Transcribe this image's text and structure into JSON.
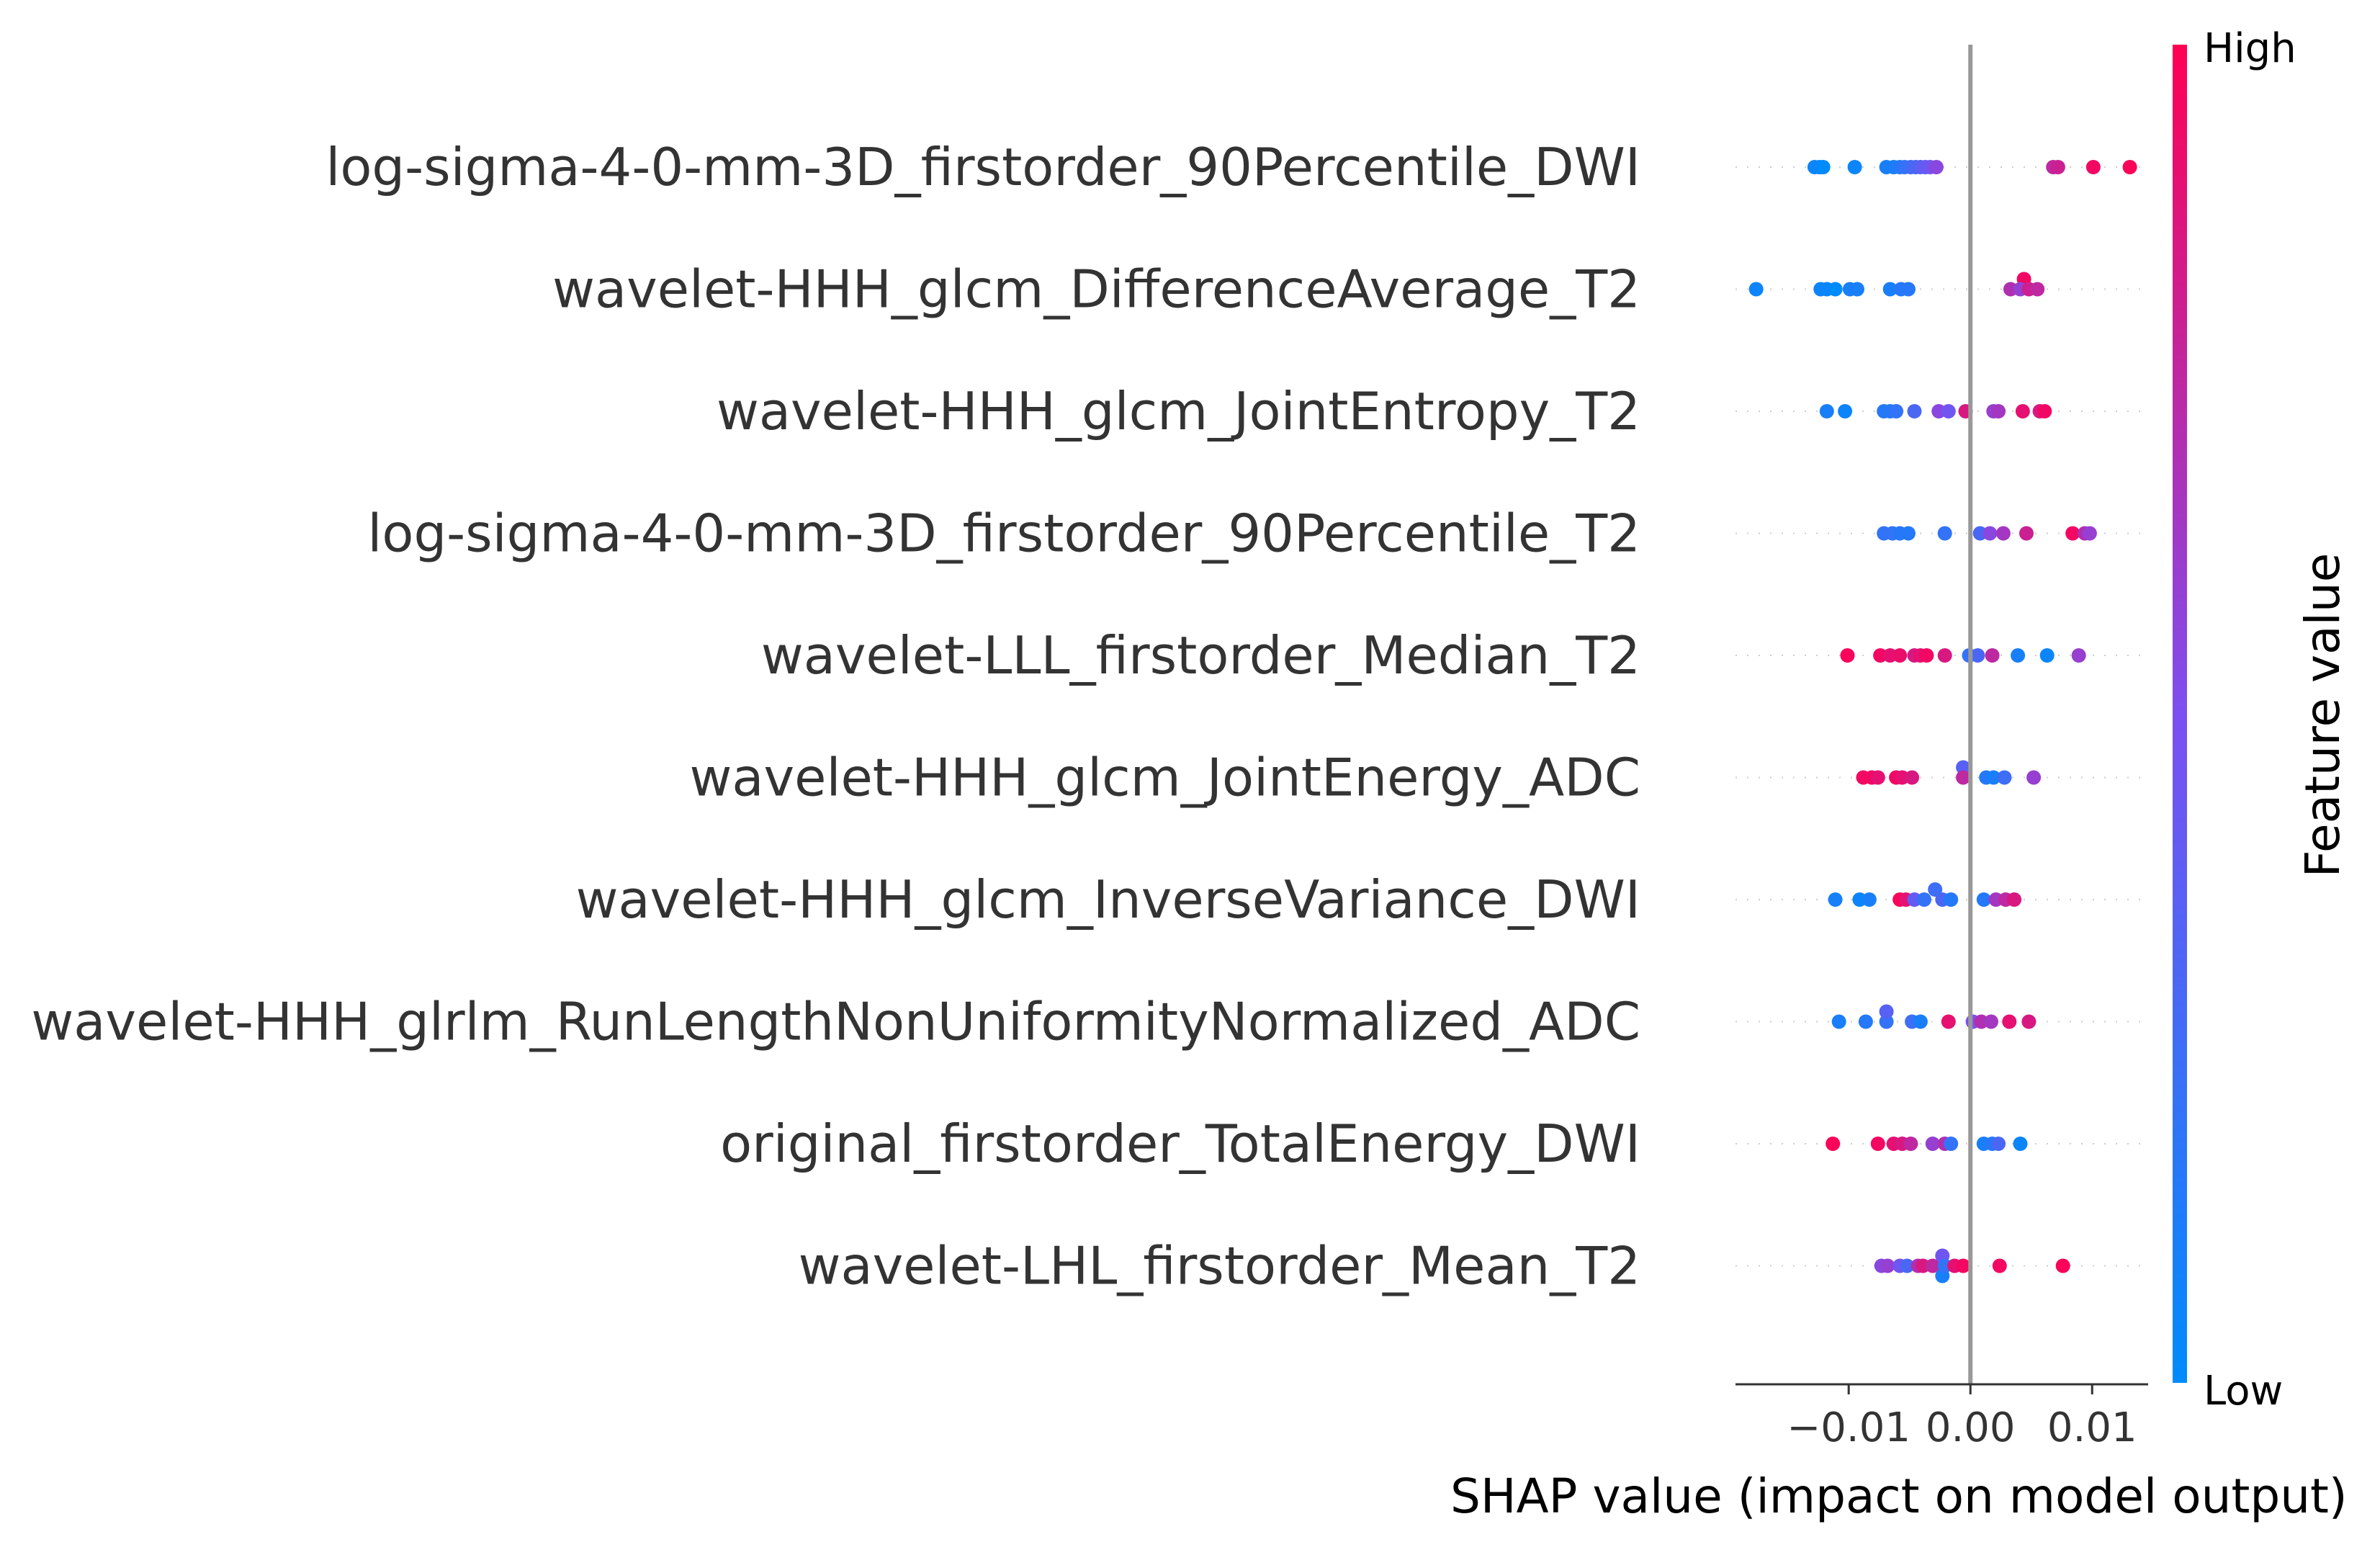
{
  "chart_data": {
    "type": "scatter",
    "subtype": "shap-beeswarm",
    "xlabel": "SHAP value (impact on model output)",
    "x_ticks": [
      {
        "value": -0.01,
        "label": "−0.01"
      },
      {
        "value": 0.0,
        "label": "0.00"
      },
      {
        "value": 0.01,
        "label": "0.01"
      }
    ],
    "xlim": [
      -0.0193,
      0.0146
    ],
    "colorbar": {
      "title": "Feature value",
      "high_label": "High",
      "low_label": "Low",
      "high_color": "#ff0052",
      "low_color": "#008bfb",
      "mid_color": "#7c4ff0"
    },
    "zero_line_color": "#999999",
    "features": [
      {
        "name": "log-sigma-4-0-mm-3D_firstorder_90Percentile_DWI",
        "points": [
          [
            -0.0128,
            0.0,
            0.05
          ],
          [
            -0.0124,
            0.0,
            0.05
          ],
          [
            -0.0121,
            0.0,
            0.0
          ],
          [
            -0.0095,
            0.0,
            0.05
          ],
          [
            -0.0069,
            0.0,
            0.1
          ],
          [
            -0.0063,
            0.0,
            0.1
          ],
          [
            -0.0058,
            0.0,
            0.15
          ],
          [
            -0.0054,
            0.0,
            0.2
          ],
          [
            -0.0049,
            0.0,
            0.25
          ],
          [
            -0.0045,
            0.0,
            0.3
          ],
          [
            -0.0041,
            0.0,
            0.35
          ],
          [
            -0.0037,
            0.0,
            0.4
          ],
          [
            -0.0033,
            0.0,
            0.45
          ],
          [
            -0.0028,
            0.0,
            0.55
          ],
          [
            0.0068,
            0.0,
            0.75
          ],
          [
            0.0072,
            0.0,
            0.8
          ],
          [
            0.0101,
            0.0,
            0.95
          ],
          [
            0.0131,
            0.0,
            0.98
          ]
        ]
      },
      {
        "name": "wavelet-HHH_glcm_DifferenceAverage_T2",
        "points": [
          [
            -0.0176,
            0.0,
            0.05
          ],
          [
            -0.0123,
            0.0,
            0.05
          ],
          [
            -0.0118,
            0.0,
            0.05
          ],
          [
            -0.0111,
            0.0,
            0.0
          ],
          [
            -0.0099,
            0.0,
            0.1
          ],
          [
            -0.0093,
            0.0,
            0.1
          ],
          [
            -0.0066,
            0.0,
            0.1
          ],
          [
            -0.0057,
            0.0,
            0.15
          ],
          [
            -0.0051,
            0.0,
            0.15
          ],
          [
            0.0044,
            1.0,
            0.95
          ],
          [
            0.0033,
            0.0,
            0.7
          ],
          [
            0.0041,
            0.0,
            0.6
          ],
          [
            0.0048,
            0.0,
            0.8
          ],
          [
            0.0055,
            0.0,
            0.75
          ]
        ]
      },
      {
        "name": "wavelet-HHH_glcm_JointEntropy_T2",
        "points": [
          [
            -0.0118,
            0.0,
            0.1
          ],
          [
            -0.0103,
            0.0,
            0.05
          ],
          [
            -0.0071,
            0.0,
            0.15
          ],
          [
            -0.0066,
            0.0,
            0.15
          ],
          [
            -0.0061,
            0.0,
            0.2
          ],
          [
            -0.0046,
            0.0,
            0.3
          ],
          [
            -0.0026,
            0.0,
            0.55
          ],
          [
            -0.0018,
            0.0,
            0.45
          ],
          [
            -0.0004,
            0.0,
            0.85
          ],
          [
            0.0019,
            0.0,
            0.6
          ],
          [
            0.0023,
            0.0,
            0.65
          ],
          [
            0.0043,
            0.0,
            0.9
          ],
          [
            0.0057,
            0.0,
            0.85
          ],
          [
            0.0061,
            0.0,
            0.95
          ]
        ]
      },
      {
        "name": "log-sigma-4-0-mm-3D_firstorder_90Percentile_T2",
        "points": [
          [
            -0.0071,
            0.0,
            0.2
          ],
          [
            -0.0064,
            0.0,
            0.2
          ],
          [
            -0.0058,
            0.0,
            0.15
          ],
          [
            -0.0051,
            0.0,
            0.15
          ],
          [
            -0.0021,
            0.0,
            0.2
          ],
          [
            0.0008,
            0.0,
            0.3
          ],
          [
            0.0016,
            0.0,
            0.55
          ],
          [
            0.0027,
            0.0,
            0.65
          ],
          [
            0.0046,
            0.0,
            0.8
          ],
          [
            0.0084,
            0.0,
            0.95
          ],
          [
            0.0094,
            0.0,
            0.7
          ],
          [
            0.0098,
            0.0,
            0.6
          ]
        ]
      },
      {
        "name": "wavelet-LLL_firstorder_Median_T2",
        "points": [
          [
            -0.0101,
            0.0,
            0.98
          ],
          [
            -0.0074,
            0.0,
            0.95
          ],
          [
            -0.0066,
            0.0,
            0.9
          ],
          [
            -0.0058,
            0.0,
            0.92
          ],
          [
            -0.0046,
            0.0,
            0.85
          ],
          [
            -0.0041,
            0.0,
            0.9
          ],
          [
            -0.0036,
            0.0,
            0.95
          ],
          [
            -0.0021,
            0.0,
            0.85
          ],
          [
            -0.0001,
            0.0,
            0.2
          ],
          [
            0.0006,
            0.0,
            0.3
          ],
          [
            0.0018,
            0.0,
            0.75
          ],
          [
            0.0039,
            0.0,
            0.1
          ],
          [
            0.0063,
            0.0,
            0.05
          ],
          [
            0.0089,
            0.0,
            0.6
          ]
        ]
      },
      {
        "name": "wavelet-HHH_glcm_JointEnergy_ADC",
        "points": [
          [
            -0.0088,
            0.0,
            0.95
          ],
          [
            -0.0081,
            0.0,
            0.95
          ],
          [
            -0.0076,
            0.0,
            0.9
          ],
          [
            -0.0061,
            0.0,
            0.95
          ],
          [
            -0.0056,
            0.0,
            0.9
          ],
          [
            -0.0048,
            0.0,
            0.85
          ],
          [
            -0.0006,
            1.0,
            0.35
          ],
          [
            -0.0006,
            0.0,
            0.75
          ],
          [
            0.0013,
            0.0,
            0.15
          ],
          [
            0.0019,
            0.0,
            0.1
          ],
          [
            0.0028,
            0.0,
            0.25
          ],
          [
            0.0052,
            0.0,
            0.6
          ]
        ]
      },
      {
        "name": "wavelet-HHH_glcm_InverseVariance_DWI",
        "points": [
          [
            -0.0111,
            0.0,
            0.1
          ],
          [
            -0.0091,
            0.0,
            0.05
          ],
          [
            -0.0083,
            0.0,
            0.1
          ],
          [
            -0.0058,
            0.0,
            0.98
          ],
          [
            -0.0053,
            0.0,
            0.9
          ],
          [
            -0.0046,
            0.0,
            0.4
          ],
          [
            -0.0038,
            0.0,
            0.2
          ],
          [
            -0.0029,
            1.0,
            0.25
          ],
          [
            -0.0023,
            0.0,
            0.3
          ],
          [
            -0.0016,
            0.0,
            0.15
          ],
          [
            0.0011,
            0.0,
            0.15
          ],
          [
            0.0021,
            0.0,
            0.65
          ],
          [
            0.0029,
            0.0,
            0.75
          ],
          [
            0.0036,
            0.0,
            0.85
          ]
        ]
      },
      {
        "name": "wavelet-HHH_glrlm_RunLengthNonUniformityNormalized_ADC",
        "points": [
          [
            -0.0108,
            0.0,
            0.1
          ],
          [
            -0.0086,
            0.0,
            0.15
          ],
          [
            -0.0069,
            0.0,
            0.2
          ],
          [
            -0.0069,
            1.0,
            0.35
          ],
          [
            -0.0048,
            0.0,
            0.25
          ],
          [
            -0.0041,
            0.0,
            0.1
          ],
          [
            -0.0018,
            0.0,
            0.9
          ],
          [
            0.0002,
            0.0,
            0.5
          ],
          [
            0.0009,
            0.0,
            0.7
          ],
          [
            0.0017,
            0.0,
            0.65
          ],
          [
            0.0032,
            0.0,
            0.9
          ],
          [
            0.0048,
            0.0,
            0.85
          ]
        ]
      },
      {
        "name": "original_firstorder_TotalEnergy_DWI",
        "points": [
          [
            -0.0113,
            0.0,
            0.98
          ],
          [
            -0.0076,
            0.0,
            0.95
          ],
          [
            -0.0063,
            0.0,
            0.9
          ],
          [
            -0.0056,
            0.0,
            0.85
          ],
          [
            -0.0049,
            0.0,
            0.75
          ],
          [
            -0.0031,
            0.0,
            0.6
          ],
          [
            -0.0021,
            0.0,
            0.7
          ],
          [
            -0.0016,
            0.0,
            0.2
          ],
          [
            0.0011,
            0.0,
            0.1
          ],
          [
            0.0018,
            0.0,
            0.15
          ],
          [
            0.0023,
            0.0,
            0.3
          ],
          [
            0.0041,
            0.0,
            0.05
          ]
        ]
      },
      {
        "name": "wavelet-LHL_firstorder_Mean_T2",
        "points": [
          [
            -0.0073,
            0.0,
            0.55
          ],
          [
            -0.0068,
            0.0,
            0.6
          ],
          [
            -0.0058,
            0.0,
            0.45
          ],
          [
            -0.0052,
            0.0,
            0.3
          ],
          [
            -0.0043,
            0.0,
            0.7
          ],
          [
            -0.0039,
            0.0,
            0.85
          ],
          [
            -0.0031,
            0.0,
            0.75
          ],
          [
            -0.0023,
            1.0,
            0.45
          ],
          [
            -0.0023,
            -1.0,
            0.1
          ],
          [
            -0.0021,
            0.0,
            0.2
          ],
          [
            -0.0013,
            0.0,
            0.9
          ],
          [
            -0.0006,
            0.0,
            0.95
          ],
          [
            0.0024,
            0.0,
            0.95
          ],
          [
            0.0076,
            0.0,
            0.98
          ]
        ]
      }
    ]
  }
}
